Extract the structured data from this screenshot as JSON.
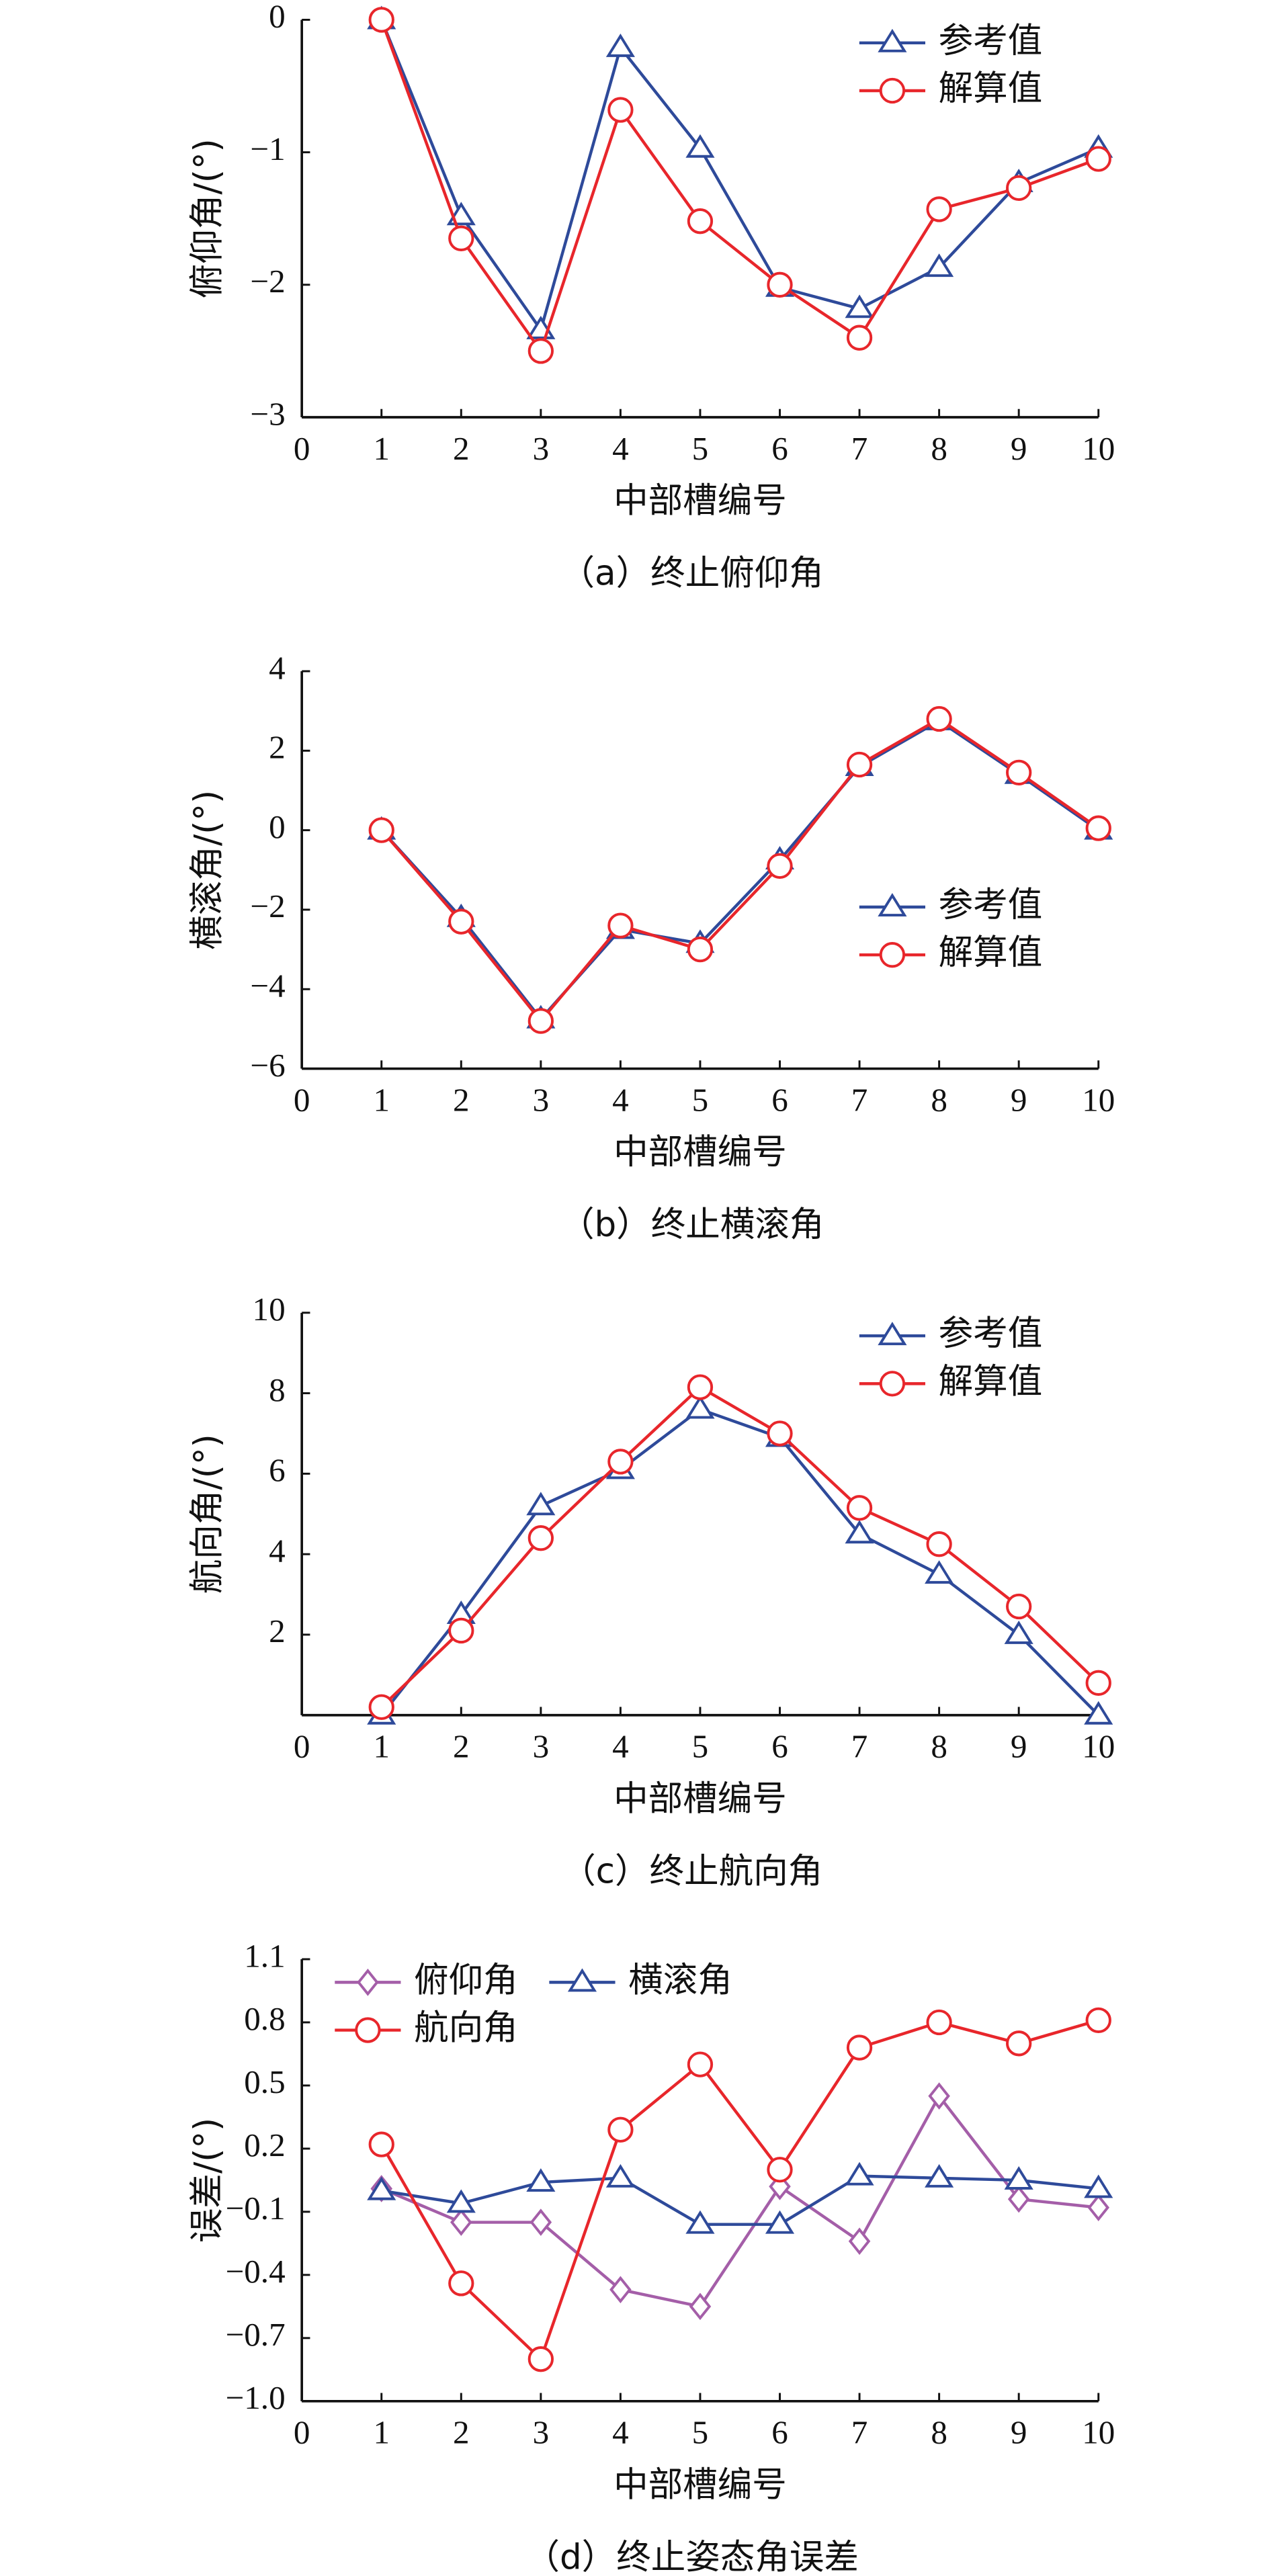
{
  "chart_data": [
    {
      "type": "line",
      "caption": "（a）终止俯仰角",
      "xlabel": "中部槽编号",
      "ylabel": "俯仰角/(°)",
      "x": [
        1,
        2,
        3,
        4,
        5,
        6,
        7,
        8,
        9,
        10
      ],
      "xlim": [
        0,
        10
      ],
      "xticks": [
        0,
        1,
        2,
        3,
        4,
        5,
        6,
        7,
        8,
        9,
        10
      ],
      "ylim": [
        -3,
        0
      ],
      "yticks": [
        0,
        {
          "value": -1,
          "label": "−1"
        },
        {
          "value": -2,
          "label": "−2"
        },
        {
          "value": -3,
          "label": "−3"
        }
      ],
      "legend": "upper right",
      "series": [
        {
          "name": "参考值",
          "color": "#2e4a9a",
          "marker": "triangle",
          "values": [
            0,
            -1.48,
            -2.34,
            -0.21,
            -0.97,
            -2.02,
            -2.18,
            -1.87,
            -1.23,
            -0.97
          ]
        },
        {
          "name": "解算值",
          "color": "#e8262b",
          "marker": "circle",
          "values": [
            0,
            -1.65,
            -2.5,
            -0.68,
            -1.52,
            -2.0,
            -2.4,
            -1.43,
            -1.27,
            -1.05
          ]
        }
      ]
    },
    {
      "type": "line",
      "caption": "（b）终止横滚角",
      "xlabel": "中部槽编号",
      "ylabel": "横滚角/(°)",
      "x": [
        1,
        2,
        3,
        4,
        5,
        6,
        7,
        8,
        9,
        10
      ],
      "xlim": [
        0,
        10
      ],
      "xticks": [
        0,
        1,
        2,
        3,
        4,
        5,
        6,
        7,
        8,
        9,
        10
      ],
      "ylim": [
        -6,
        4
      ],
      "yticks": [
        4,
        2,
        0,
        {
          "value": -2,
          "label": "−2"
        },
        {
          "value": -4,
          "label": "−4"
        },
        {
          "value": -6,
          "label": "−6"
        }
      ],
      "legend": "lower right",
      "series": [
        {
          "name": "参考值",
          "color": "#2e4a9a",
          "marker": "triangle",
          "values": [
            0,
            -2.2,
            -4.75,
            -2.5,
            -2.85,
            -0.75,
            1.6,
            2.75,
            1.4,
            0
          ]
        },
        {
          "name": "解算值",
          "color": "#e8262b",
          "marker": "circle",
          "values": [
            0,
            -2.3,
            -4.8,
            -2.4,
            -3.0,
            -0.9,
            1.65,
            2.8,
            1.45,
            0.05
          ]
        }
      ]
    },
    {
      "type": "line",
      "caption": "（c）终止航向角",
      "xlabel": "中部槽编号",
      "ylabel": "航向角/(°)",
      "x": [
        1,
        2,
        3,
        4,
        5,
        6,
        7,
        8,
        9,
        10
      ],
      "xlim": [
        0,
        10
      ],
      "xticks": [
        0,
        1,
        2,
        3,
        4,
        5,
        6,
        7,
        8,
        9,
        10
      ],
      "ylim": [
        0,
        10
      ],
      "yticks": [
        10,
        8,
        6,
        4,
        2
      ],
      "legend": "upper right",
      "series": [
        {
          "name": "参考值",
          "color": "#2e4a9a",
          "marker": "triangle",
          "values": [
            0,
            2.5,
            5.2,
            6.1,
            7.6,
            6.9,
            4.5,
            3.5,
            2.0,
            0
          ]
        },
        {
          "name": "解算值",
          "color": "#e8262b",
          "marker": "circle",
          "values": [
            0.2,
            2.1,
            4.4,
            6.3,
            8.15,
            7.0,
            5.15,
            4.25,
            2.7,
            0.8
          ]
        }
      ]
    },
    {
      "type": "line",
      "caption": "（d）终止姿态角误差",
      "xlabel": "中部槽编号",
      "ylabel": "误差/(°)",
      "x": [
        1,
        2,
        3,
        4,
        5,
        6,
        7,
        8,
        9,
        10
      ],
      "xlim": [
        0,
        10
      ],
      "xticks": [
        0,
        1,
        2,
        3,
        4,
        5,
        6,
        7,
        8,
        9,
        10
      ],
      "ylim": [
        -1.0,
        1.1
      ],
      "yticks": [
        1.1,
        0.8,
        0.5,
        0.2,
        {
          "value": -0.1,
          "label": "−0.1"
        },
        {
          "value": -0.4,
          "label": "−0.4"
        },
        {
          "value": -0.7,
          "label": "−0.7"
        },
        {
          "value": -1.0,
          "label": "−1.0"
        }
      ],
      "legend": "upper left",
      "series": [
        {
          "name": "俯仰角",
          "color": "#a45ea8",
          "marker": "diamond",
          "values": [
            0.01,
            -0.15,
            -0.15,
            -0.47,
            -0.55,
            0.02,
            -0.24,
            0.45,
            -0.04,
            -0.08
          ]
        },
        {
          "name": "横滚角",
          "color": "#2e4a9a",
          "marker": "triangle",
          "values": [
            0.0,
            -0.06,
            0.04,
            0.06,
            -0.16,
            -0.16,
            0.07,
            0.06,
            0.05,
            0.01
          ]
        },
        {
          "name": "航向角",
          "color": "#e8262b",
          "marker": "circle",
          "values": [
            0.22,
            -0.44,
            -0.8,
            0.29,
            0.6,
            0.1,
            0.68,
            0.8,
            0.7,
            0.81
          ]
        }
      ]
    }
  ]
}
